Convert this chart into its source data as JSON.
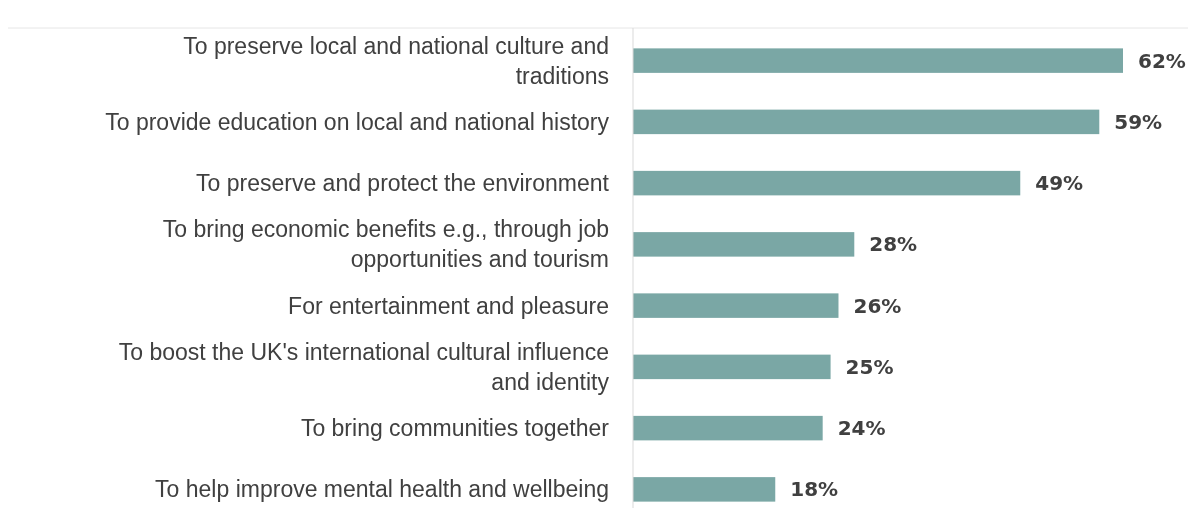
{
  "chart_data": {
    "type": "bar",
    "orientation": "horizontal",
    "categories": [
      "To preserve local and national culture and traditions",
      "To provide education on local and national history",
      "To preserve and protect the environment",
      "To bring economic benefits e.g., through job opportunities and tourism",
      "For entertainment and pleasure",
      "To boost the UK's international cultural influence and identity",
      "To bring communities together",
      "To help improve mental health and wellbeing"
    ],
    "values": [
      62,
      59,
      49,
      28,
      26,
      25,
      24,
      18
    ],
    "value_labels": [
      "62%",
      "59%",
      "49%",
      "28%",
      "26%",
      "25%",
      "24%",
      "18%"
    ],
    "color": "#7aa7a5"
  }
}
